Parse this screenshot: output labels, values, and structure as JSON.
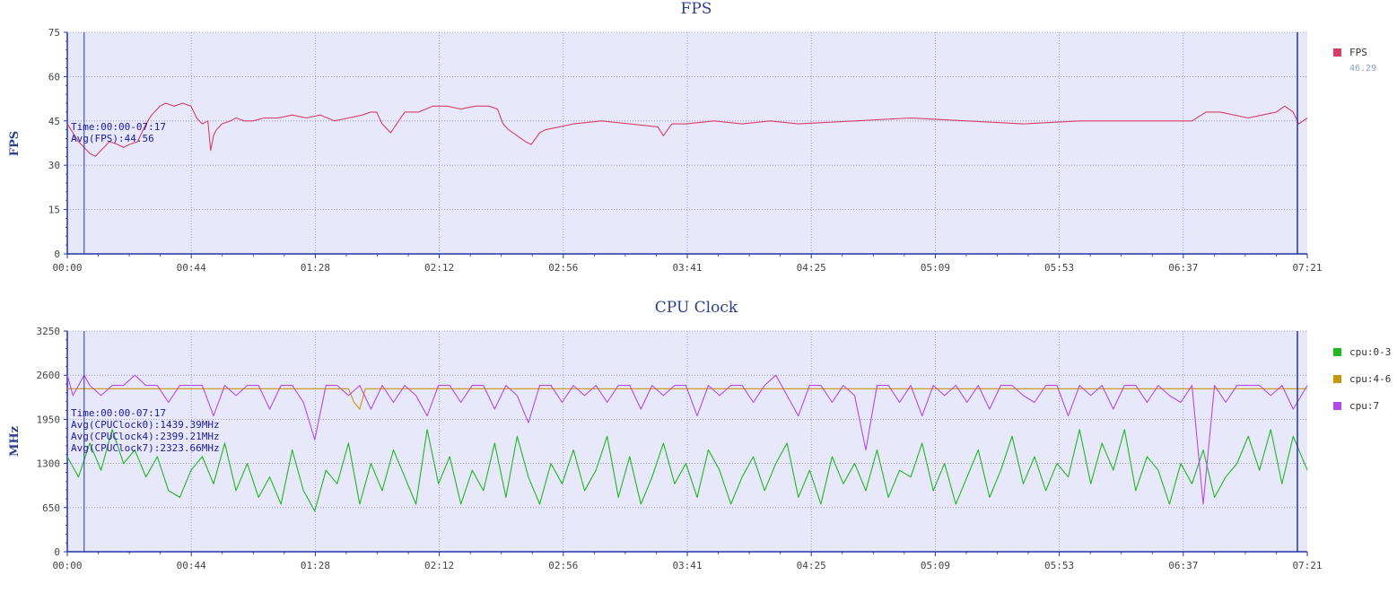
{
  "x_ticks": [
    "00:00",
    "00:44",
    "01:28",
    "02:12",
    "02:56",
    "03:41",
    "04:25",
    "05:09",
    "05:53",
    "06:37",
    "07:21"
  ],
  "chart_data": [
    {
      "type": "line",
      "title": "FPS",
      "ylabel": "FPS",
      "xlabel": "",
      "ylim": [
        0,
        75
      ],
      "y_ticks": [
        0,
        15,
        30,
        45,
        60,
        75
      ],
      "x_range_seconds": [
        0,
        441
      ],
      "grid": true,
      "legend_placement": "right",
      "cursor_time_seconds": 6,
      "readout_lines": [
        "Time:00:00-07:17",
        "Avg(FPS):44.56"
      ],
      "series": [
        {
          "name": "FPS",
          "color": "#d63f63",
          "legend_value": "46.29",
          "x": [
            0,
            2,
            4,
            6,
            8,
            10,
            13,
            15,
            18,
            20,
            22,
            25,
            28,
            30,
            33,
            35,
            38,
            41,
            44,
            46,
            48,
            50,
            51,
            52,
            53,
            55,
            58,
            60,
            63,
            66,
            70,
            75,
            80,
            85,
            90,
            95,
            100,
            105,
            108,
            110,
            112,
            115,
            120,
            125,
            130,
            135,
            140,
            145,
            150,
            153,
            155,
            157,
            160,
            163,
            165,
            168,
            170,
            175,
            180,
            190,
            200,
            210,
            212,
            215,
            220,
            230,
            240,
            250,
            260,
            280,
            300,
            320,
            340,
            360,
            380,
            400,
            405,
            410,
            420,
            425,
            430,
            433,
            436,
            438,
            441
          ],
          "y": [
            44,
            41,
            38,
            36,
            34,
            33,
            36,
            38,
            37,
            36,
            37,
            38,
            44,
            47,
            50,
            51,
            50,
            51,
            50,
            46,
            44,
            45,
            35,
            40,
            42,
            44,
            45,
            46,
            45,
            45,
            46,
            46,
            47,
            46,
            47,
            45,
            46,
            47,
            48,
            48,
            44,
            41,
            48,
            48,
            50,
            50,
            49,
            50,
            50,
            49,
            44,
            42,
            40,
            38,
            37,
            41,
            42,
            43,
            44,
            45,
            44,
            43,
            40,
            44,
            44,
            45,
            44,
            45,
            44,
            45,
            46,
            45,
            44,
            45,
            45,
            45,
            48,
            48,
            46,
            47,
            48,
            50,
            48,
            44,
            46
          ]
        }
      ]
    },
    {
      "type": "line",
      "title": "CPU Clock",
      "ylabel": "MHz",
      "xlabel": "",
      "ylim": [
        0,
        3250
      ],
      "y_ticks": [
        0,
        650,
        1300,
        1950,
        2600,
        3250
      ],
      "x_range_seconds": [
        0,
        441
      ],
      "grid": true,
      "legend_placement": "right",
      "cursor_time_seconds": 6,
      "readout_lines": [
        "Time:00:00-07:17",
        "Avg(CPUClock0):1439.39MHz",
        "Avg(CPUClock4):2399.21MHz",
        "Avg(CPUClock7):2323.66MHz"
      ],
      "series": [
        {
          "name": "cpu:0-3",
          "color": "#1fb81f",
          "x": [
            0,
            4,
            8,
            12,
            16,
            20,
            24,
            28,
            32,
            36,
            40,
            44,
            48,
            52,
            56,
            60,
            64,
            68,
            72,
            76,
            80,
            84,
            88,
            92,
            96,
            100,
            104,
            108,
            112,
            116,
            120,
            124,
            128,
            132,
            136,
            140,
            144,
            148,
            152,
            156,
            160,
            164,
            168,
            172,
            176,
            180,
            184,
            188,
            192,
            196,
            200,
            204,
            208,
            212,
            216,
            220,
            224,
            228,
            232,
            236,
            240,
            244,
            248,
            252,
            256,
            260,
            264,
            268,
            272,
            276,
            280,
            284,
            288,
            292,
            296,
            300,
            304,
            308,
            312,
            316,
            320,
            324,
            328,
            332,
            336,
            340,
            344,
            348,
            352,
            356,
            360,
            364,
            368,
            372,
            376,
            380,
            384,
            388,
            392,
            396,
            400,
            404,
            408,
            412,
            416,
            420,
            424,
            428,
            432,
            436,
            441
          ],
          "y": [
            1400,
            1100,
            1600,
            1200,
            1800,
            1300,
            1500,
            1100,
            1400,
            900,
            800,
            1200,
            1400,
            1000,
            1600,
            900,
            1300,
            800,
            1100,
            700,
            1500,
            900,
            600,
            1200,
            1000,
            1600,
            700,
            1300,
            900,
            1500,
            1100,
            700,
            1800,
            1000,
            1400,
            700,
            1200,
            900,
            1600,
            800,
            1700,
            1100,
            700,
            1300,
            1000,
            1500,
            900,
            1200,
            1700,
            800,
            1400,
            700,
            1100,
            1600,
            1000,
            1300,
            800,
            1500,
            1200,
            700,
            1100,
            1400,
            900,
            1300,
            1600,
            800,
            1200,
            700,
            1400,
            1000,
            1300,
            900,
            1500,
            800,
            1200,
            1100,
            1600,
            900,
            1300,
            700,
            1100,
            1500,
            800,
            1200,
            1700,
            1000,
            1400,
            900,
            1300,
            1100,
            1800,
            1000,
            1600,
            1200,
            1800,
            900,
            1400,
            1200,
            700,
            1300,
            1000,
            1500,
            800,
            1100,
            1300,
            1700,
            1200,
            1800,
            1000,
            1700,
            1200
          ]
        },
        {
          "name": "cpu:4-6",
          "color": "#c8960a",
          "x": [
            0,
            100,
            102,
            104,
            106,
            110,
            200,
            300,
            400,
            441
          ],
          "y": [
            2400,
            2400,
            2200,
            2100,
            2400,
            2400,
            2400,
            2400,
            2400,
            2400
          ]
        },
        {
          "name": "cpu:7",
          "color": "#b44ae6",
          "x": [
            0,
            2,
            4,
            6,
            8,
            12,
            16,
            20,
            24,
            28,
            32,
            36,
            40,
            44,
            48,
            52,
            56,
            60,
            64,
            68,
            72,
            76,
            80,
            84,
            88,
            92,
            96,
            100,
            104,
            108,
            112,
            116,
            120,
            124,
            128,
            132,
            136,
            140,
            144,
            148,
            152,
            156,
            160,
            164,
            168,
            172,
            176,
            180,
            184,
            188,
            192,
            196,
            200,
            204,
            208,
            212,
            216,
            220,
            224,
            228,
            232,
            236,
            240,
            244,
            248,
            252,
            256,
            260,
            264,
            268,
            272,
            276,
            280,
            284,
            288,
            292,
            296,
            300,
            304,
            308,
            312,
            316,
            320,
            324,
            328,
            332,
            336,
            340,
            344,
            348,
            352,
            356,
            360,
            364,
            368,
            372,
            376,
            380,
            384,
            388,
            392,
            396,
            400,
            404,
            408,
            412,
            416,
            420,
            424,
            428,
            432,
            436,
            441
          ],
          "y": [
            2600,
            2300,
            2450,
            2600,
            2450,
            2300,
            2450,
            2450,
            2600,
            2450,
            2450,
            2200,
            2450,
            2450,
            2450,
            2000,
            2450,
            2300,
            2450,
            2450,
            2100,
            2450,
            2450,
            2200,
            1650,
            2450,
            2450,
            2300,
            2450,
            2100,
            2450,
            2200,
            2450,
            2300,
            2000,
            2450,
            2450,
            2200,
            2450,
            2450,
            2100,
            2450,
            2300,
            1900,
            2450,
            2450,
            2200,
            2450,
            2300,
            2450,
            2200,
            2450,
            2450,
            2100,
            2450,
            2300,
            2450,
            2450,
            2000,
            2450,
            2300,
            2450,
            2450,
            2200,
            2450,
            2600,
            2300,
            2000,
            2450,
            2450,
            2200,
            2450,
            2300,
            1500,
            2450,
            2450,
            2200,
            2450,
            2000,
            2450,
            2300,
            2450,
            2200,
            2450,
            2100,
            2450,
            2450,
            2300,
            2200,
            2450,
            2450,
            2000,
            2450,
            2300,
            2450,
            2100,
            2450,
            2450,
            2200,
            2450,
            2300,
            2200,
            2450,
            700,
            2450,
            2200,
            2450,
            2450,
            2450,
            2300,
            2450,
            2100,
            2450
          ]
        }
      ]
    }
  ]
}
